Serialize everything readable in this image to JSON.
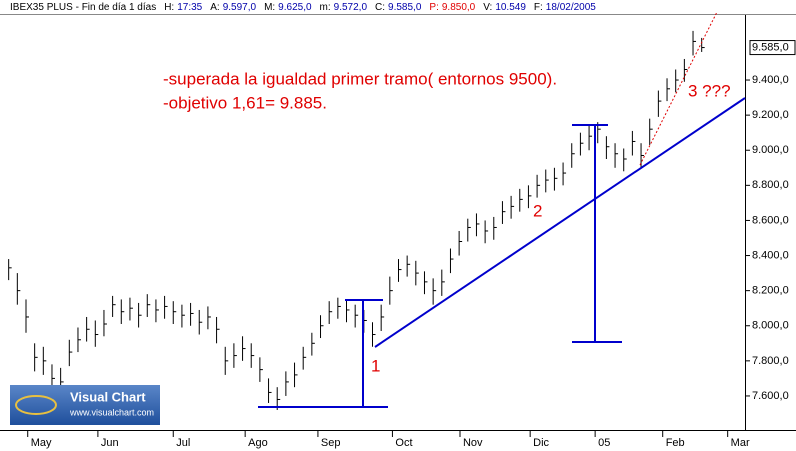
{
  "header": {
    "symbol": "IBEX35 PLUS - Fin de día 1 días",
    "fields": [
      {
        "label": "H:",
        "value": "17:35"
      },
      {
        "label": "A:",
        "value": "9.597,0"
      },
      {
        "label": "M:",
        "value": "9.625,0"
      },
      {
        "label": "m:",
        "value": "9.572,0"
      },
      {
        "label": "C:",
        "value": "9.585,0"
      },
      {
        "label": "P:",
        "value": "9.850,0",
        "color": "#e00000"
      },
      {
        "label": "V:",
        "value": "10.549"
      },
      {
        "label": "F:",
        "value": "18/02/2005"
      }
    ]
  },
  "logo": {
    "name": "Visual Chart",
    "url": "www.visualchart.com"
  },
  "chart_data": {
    "type": "ohlc",
    "color": "#000000",
    "categories": [
      null,
      null,
      null,
      null,
      null,
      null,
      null,
      null,
      null,
      null,
      null,
      null,
      null,
      null,
      null,
      null,
      null,
      null,
      null,
      null,
      null,
      null,
      null,
      null,
      null,
      null,
      null,
      null,
      null,
      null,
      null,
      null,
      null,
      null,
      null,
      null,
      null,
      null,
      null,
      null,
      null,
      null,
      null,
      null,
      null,
      null,
      null,
      null,
      null,
      null,
      null,
      null,
      null,
      null,
      null,
      null,
      null,
      null,
      null,
      null,
      null,
      null,
      null,
      null,
      null,
      null,
      null,
      null,
      null,
      null,
      null,
      null,
      null,
      null,
      null,
      null,
      null,
      null,
      null,
      null,
      null
    ],
    "high": [
      8380,
      8300,
      8150,
      7900,
      7880,
      7780,
      7760,
      7920,
      7990,
      8050,
      8030,
      8090,
      8170,
      8150,
      8160,
      8130,
      8180,
      8150,
      8170,
      8140,
      8120,
      8130,
      8090,
      8110,
      8050,
      7880,
      7900,
      7940,
      7900,
      7820,
      7700,
      7650,
      7740,
      7790,
      7880,
      7960,
      8060,
      8140,
      8160,
      8150,
      8120,
      8090,
      8020,
      8120,
      8280,
      8380,
      8400,
      8370,
      8310,
      8270,
      8320,
      8440,
      8540,
      8610,
      8640,
      8600,
      8620,
      8710,
      8740,
      8780,
      8800,
      8860,
      8890,
      8900,
      8930,
      9040,
      9100,
      9140,
      9160,
      9080,
      9040,
      9010,
      9110,
      9040,
      9180,
      9340,
      9410,
      9460,
      9520,
      9680,
      9640
    ],
    "low": [
      8260,
      8120,
      7960,
      7740,
      7720,
      7630,
      7600,
      7770,
      7850,
      7910,
      7880,
      7940,
      8050,
      8010,
      8030,
      7990,
      8050,
      8020,
      8040,
      8010,
      7990,
      8000,
      7950,
      7980,
      7900,
      7720,
      7760,
      7800,
      7760,
      7680,
      7560,
      7520,
      7600,
      7650,
      7750,
      7830,
      7930,
      8010,
      8040,
      8020,
      7990,
      7960,
      7880,
      7970,
      8120,
      8250,
      8280,
      8230,
      8180,
      8120,
      8170,
      8300,
      8400,
      8480,
      8510,
      8470,
      8490,
      8580,
      8610,
      8650,
      8670,
      8730,
      8760,
      8770,
      8800,
      8900,
      8970,
      9000,
      9040,
      8950,
      8900,
      8880,
      8970,
      8900,
      9030,
      9190,
      9280,
      9330,
      9390,
      9540,
      9560
    ],
    "close": [
      8330,
      8200,
      8050,
      7820,
      7800,
      7700,
      7680,
      7850,
      7920,
      7980,
      7950,
      8010,
      8120,
      8080,
      8100,
      8060,
      8120,
      8090,
      8110,
      8080,
      8060,
      8070,
      8020,
      8050,
      7980,
      7800,
      7830,
      7870,
      7830,
      7750,
      7620,
      7580,
      7680,
      7720,
      7820,
      7900,
      8000,
      8080,
      8110,
      8090,
      8060,
      8030,
      7950,
      8050,
      8200,
      8320,
      8350,
      8300,
      8250,
      8200,
      8250,
      8380,
      8480,
      8560,
      8580,
      8540,
      8560,
      8650,
      8680,
      8720,
      8740,
      8800,
      8830,
      8840,
      8870,
      8980,
      9040,
      9080,
      9120,
      9020,
      8980,
      8950,
      9050,
      8970,
      9120,
      9280,
      9350,
      9400,
      9460,
      9620,
      9585
    ],
    "xlim": [
      0,
      86
    ],
    "xticks": [
      {
        "value": 3.2,
        "label": "May"
      },
      {
        "value": 11.3,
        "label": "Jun"
      },
      {
        "value": 20,
        "label": "Jul"
      },
      {
        "value": 28.3,
        "label": "Ago"
      },
      {
        "value": 36.7,
        "label": "Sep"
      },
      {
        "value": 45.3,
        "label": "Oct"
      },
      {
        "value": 53.1,
        "label": "Nov"
      },
      {
        "value": 61.2,
        "label": "Dic"
      },
      {
        "value": 68.7,
        "label": "05"
      },
      {
        "value": 76.5,
        "label": "Feb"
      },
      {
        "value": 84,
        "label": "Mar"
      }
    ],
    "ylim": [
      7406,
      9856
    ],
    "yticks": [
      {
        "value": 7600,
        "label": "7.600,0"
      },
      {
        "value": 7800,
        "label": "7.800,0"
      },
      {
        "value": 8000,
        "label": "8.000,0"
      },
      {
        "value": 8200,
        "label": "8.200,0"
      },
      {
        "value": 8400,
        "label": "8.400,0"
      },
      {
        "value": 8600,
        "label": "8.600,0"
      },
      {
        "value": 8800,
        "label": "8.800,0"
      },
      {
        "value": 9000,
        "label": "9.000,0"
      },
      {
        "value": 9200,
        "label": "9.200,0"
      },
      {
        "value": 9400,
        "label": "9.400,0"
      }
    ],
    "last_price": {
      "value": 9585,
      "label": "9.585,0"
    },
    "annotations": [
      "-superada la igualdad primer tramo( entornos 9500).",
      "-objetivo 1,61= 9.885.",
      "1",
      "2",
      "3 ???"
    ]
  }
}
